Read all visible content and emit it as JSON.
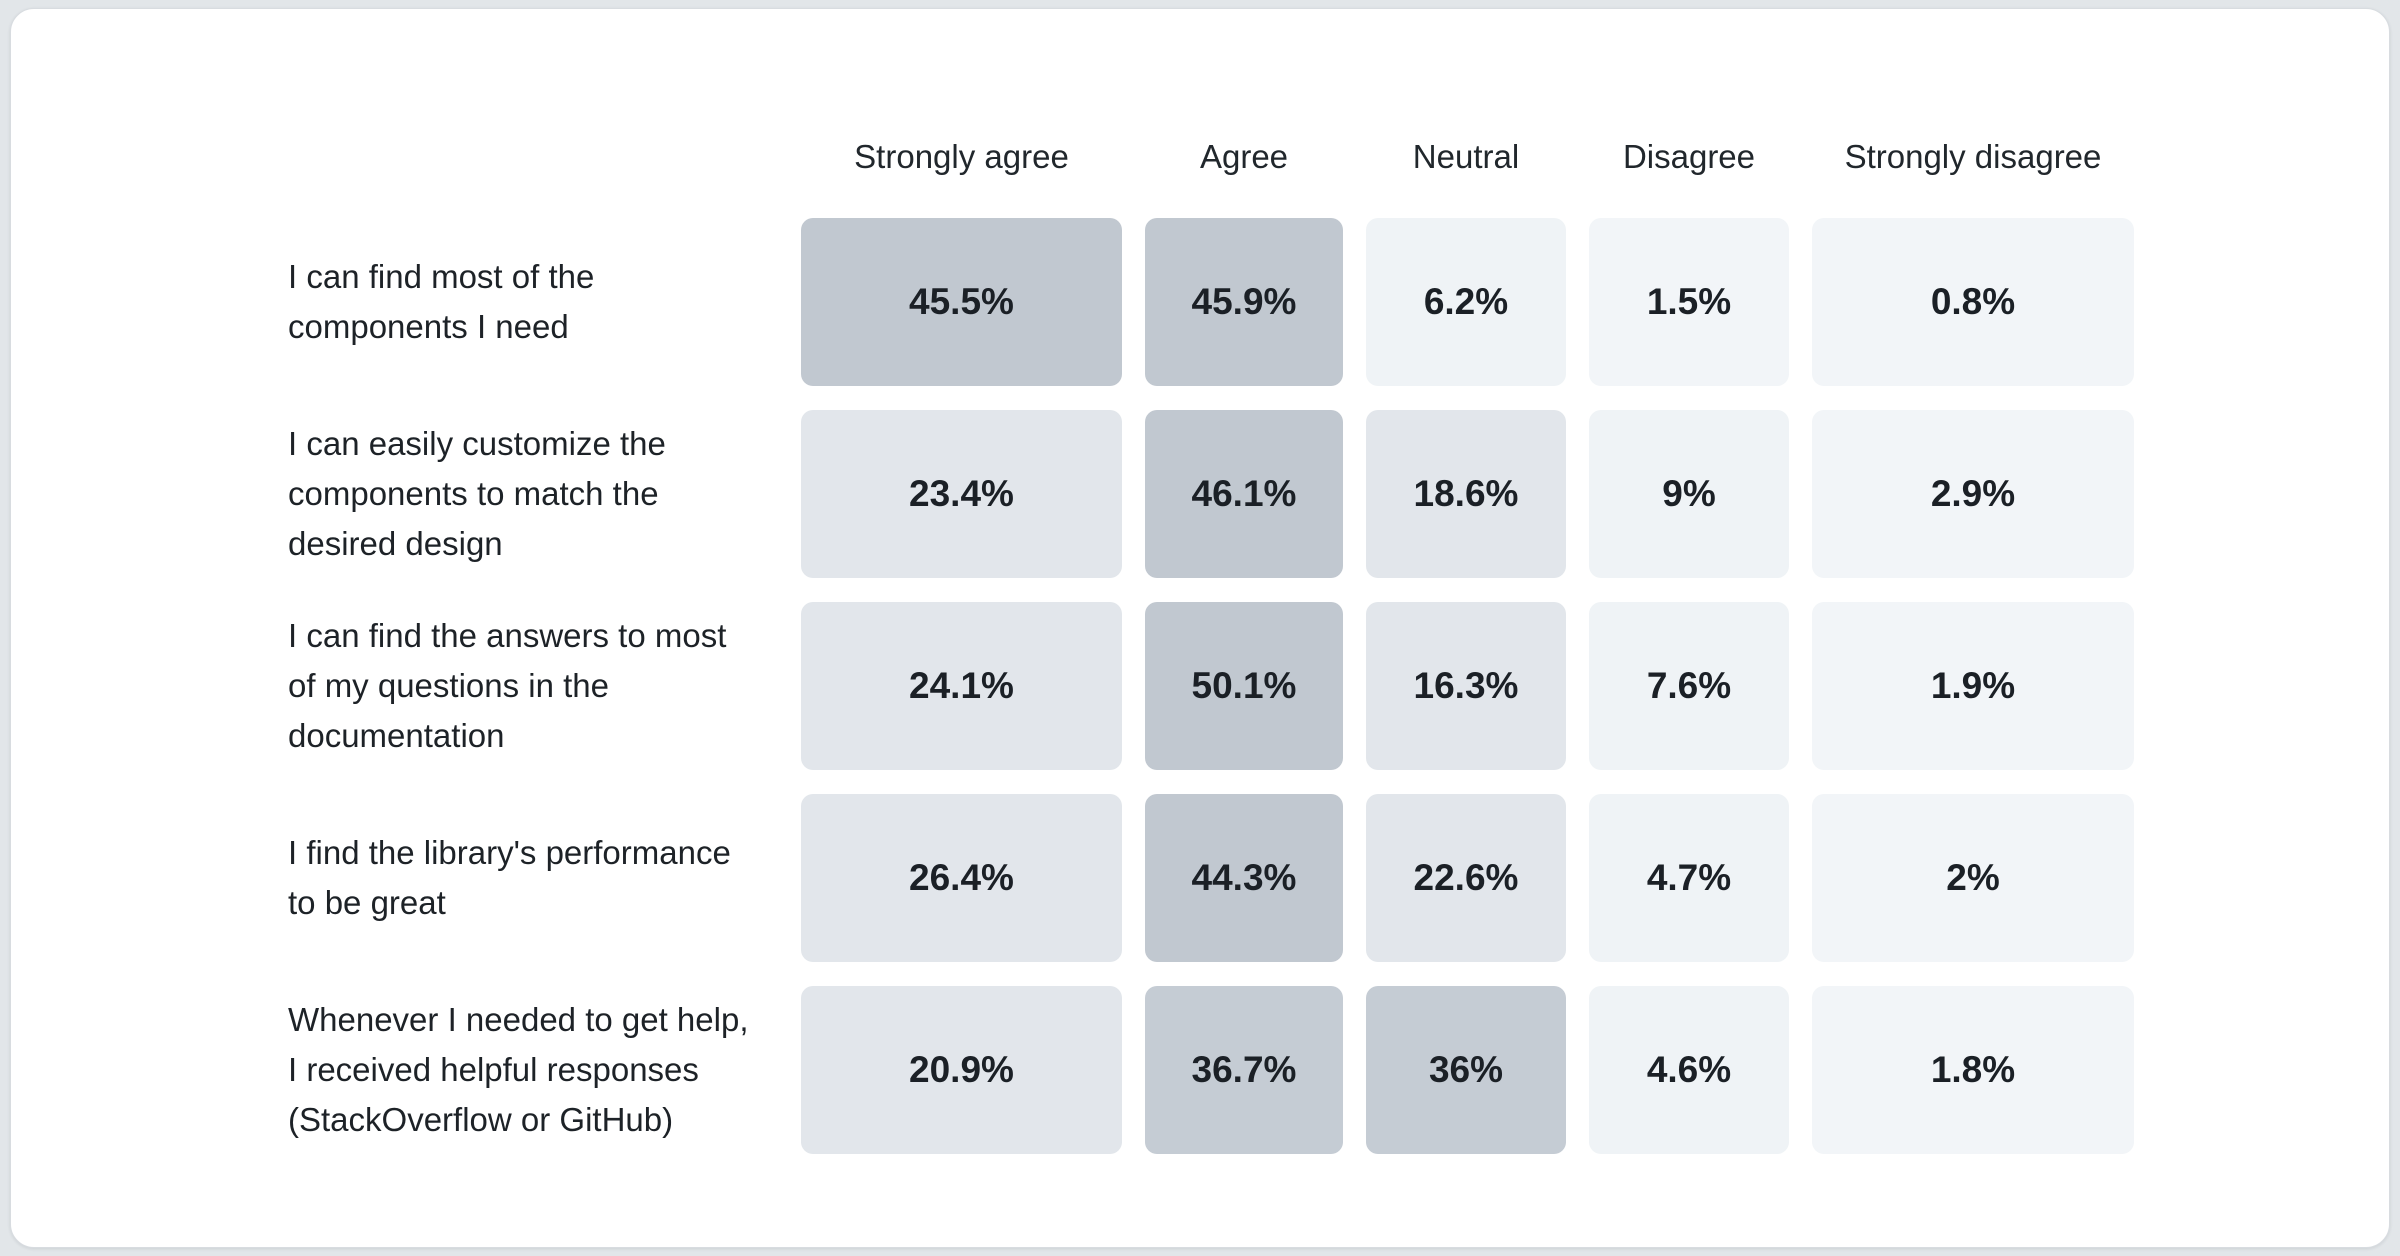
{
  "chart_data": {
    "type": "heatmap",
    "title": "",
    "legend_position": "none",
    "grid": false,
    "columns": [
      "Strongly agree",
      "Agree",
      "Neutral",
      "Disagree",
      "Strongly disagree"
    ],
    "rows": [
      {
        "label": "I can find most of the components I need",
        "label_lines": [
          "I can find most of the",
          "components I need"
        ],
        "values": [
          45.5,
          45.9,
          6.2,
          1.5,
          0.8
        ],
        "labels": [
          "45.5%",
          "45.9%",
          "6.2%",
          "1.5%",
          "0.8%"
        ]
      },
      {
        "label": "I can easily customize the components to match the desired design",
        "label_lines": [
          "I can easily customize the",
          "components to match the",
          "desired design"
        ],
        "values": [
          23.4,
          46.1,
          18.6,
          9,
          2.9
        ],
        "labels": [
          "23.4%",
          "46.1%",
          "18.6%",
          "9%",
          "2.9%"
        ]
      },
      {
        "label": "I can find the answers to most of my questions in the documentation",
        "label_lines": [
          "I can find the answers to most",
          "of my questions in the",
          "documentation"
        ],
        "values": [
          24.1,
          50.1,
          16.3,
          7.6,
          1.9
        ],
        "labels": [
          "24.1%",
          "50.1%",
          "16.3%",
          "7.6%",
          "1.9%"
        ]
      },
      {
        "label": "I find the library's performance to be great",
        "label_lines": [
          "I find the library's performance",
          "to be great"
        ],
        "values": [
          26.4,
          44.3,
          22.6,
          4.7,
          2
        ],
        "labels": [
          "26.4%",
          "44.3%",
          "22.6%",
          "4.7%",
          "2%"
        ]
      },
      {
        "label": "Whenever I needed to get help, I received helpful responses (StackOverflow or GitHub)",
        "label_lines": [
          "Whenever I needed to get help,",
          "I received helpful responses",
          "(StackOverflow or GitHub)"
        ],
        "values": [
          20.9,
          36.7,
          36,
          4.6,
          1.8
        ],
        "labels": [
          "20.9%",
          "36.7%",
          "36%",
          "4.6%",
          "1.8%"
        ]
      }
    ],
    "value_range": [
      0,
      50.1
    ],
    "color_scale": {
      "bins": [
        {
          "max": 3.5,
          "color": "#f2f5f8"
        },
        {
          "max": 12,
          "color": "#eff3f6"
        },
        {
          "max": 28,
          "color": "#e2e6eb"
        },
        {
          "max": 40,
          "color": "#c5ccd4"
        },
        {
          "max": 100,
          "color": "#c1c8d0"
        }
      ],
      "low_color": "#f2f5f8",
      "high_color": "#c1c8d0"
    },
    "text_color": "#1b2026"
  }
}
